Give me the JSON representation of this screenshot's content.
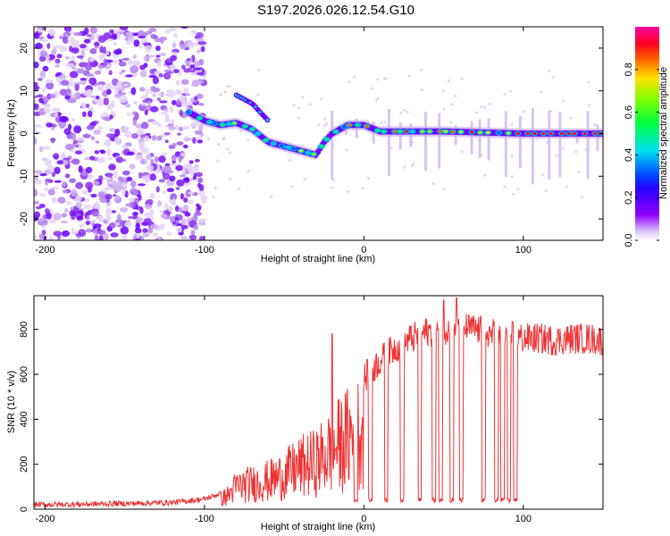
{
  "title": "S197.2026.026.12.54.G10",
  "chart_data": [
    {
      "type": "heatmap",
      "name": "spectrogram",
      "xlabel": "Height of straight line (km)",
      "ylabel": "Frequency (Hz)",
      "xlim": [
        -207,
        150
      ],
      "ylim": [
        -25,
        25
      ],
      "xticks": [
        -200,
        -100,
        0,
        100
      ],
      "yticks": [
        -20,
        -10,
        0,
        10,
        20
      ],
      "colorbar": {
        "label": "Normalized spectral amplitude",
        "range": [
          0,
          1
        ],
        "ticks": [
          0.0,
          0.2,
          0.4,
          0.6,
          0.8
        ]
      },
      "signal_track": [
        {
          "x": -110,
          "f": 5
        },
        {
          "x": -100,
          "f": 3
        },
        {
          "x": -90,
          "f": 2
        },
        {
          "x": -80,
          "f": 2.5
        },
        {
          "x": -70,
          "f": 1
        },
        {
          "x": -60,
          "f": -2
        },
        {
          "x": -50,
          "f": -3
        },
        {
          "x": -40,
          "f": -4
        },
        {
          "x": -30,
          "f": -5
        },
        {
          "x": -25,
          "f": -2
        },
        {
          "x": -20,
          "f": 0
        },
        {
          "x": -10,
          "f": 2
        },
        {
          "x": 0,
          "f": 2
        },
        {
          "x": 10,
          "f": 0.5
        },
        {
          "x": 50,
          "f": 0.5
        },
        {
          "x": 100,
          "f": 0
        },
        {
          "x": 150,
          "f": 0
        }
      ],
      "secondary_track": [
        {
          "x": -80,
          "f": 9
        },
        {
          "x": -70,
          "f": 7
        },
        {
          "x": -60,
          "f": 3
        }
      ]
    },
    {
      "type": "line",
      "name": "snr",
      "xlabel": "Height of straight line (km)",
      "ylabel": "SNR (10 * v/v)",
      "xlim": [
        -207,
        150
      ],
      "ylim": [
        0,
        950
      ],
      "xticks": [
        -200,
        -100,
        0,
        100
      ],
      "yticks": [
        0,
        200,
        400,
        600,
        800
      ],
      "series_color": "#ee3333",
      "envelope": {
        "x": [
          -207,
          -180,
          -150,
          -120,
          -100,
          -90,
          -85,
          -80,
          -70,
          -60,
          -50,
          -40,
          -30,
          -20,
          -10,
          0,
          10,
          20,
          30,
          40,
          50,
          60,
          70,
          80,
          90,
          100,
          110,
          120,
          130,
          140,
          150
        ],
        "y": [
          20,
          22,
          25,
          30,
          45,
          70,
          100,
          160,
          180,
          200,
          240,
          300,
          330,
          420,
          500,
          580,
          660,
          720,
          760,
          790,
          800,
          810,
          800,
          780,
          770,
          760,
          760,
          750,
          760,
          760,
          750
        ]
      },
      "dropouts_x": [
        -5,
        4,
        14,
        24,
        35,
        44,
        48,
        55,
        61,
        75,
        83,
        87,
        91,
        95
      ],
      "dropout_level": 30,
      "spikes": [
        {
          "x": -20,
          "y": 780
        },
        {
          "x": 50,
          "y": 930
        },
        {
          "x": 58,
          "y": 940
        }
      ]
    }
  ]
}
